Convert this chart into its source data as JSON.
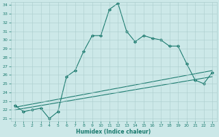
{
  "xlabel": "Humidex (Indice chaleur)",
  "x": [
    0,
    1,
    2,
    3,
    4,
    5,
    6,
    7,
    8,
    9,
    10,
    11,
    12,
    13,
    14,
    15,
    16,
    17,
    18,
    19,
    20,
    21,
    22,
    23
  ],
  "main_y": [
    22.5,
    21.8,
    22.0,
    22.2,
    21.0,
    21.8,
    25.8,
    26.5,
    28.7,
    30.5,
    30.5,
    33.5,
    34.2,
    31.0,
    29.8,
    30.5,
    30.2,
    30.0,
    29.3,
    29.3,
    27.3,
    25.4,
    25.0,
    26.3
  ],
  "trend1_x": [
    0,
    23
  ],
  "trend1_y": [
    22.3,
    26.5
  ],
  "trend2_x": [
    0,
    23
  ],
  "trend2_y": [
    22.0,
    25.8
  ],
  "line_color": "#1a7a6e",
  "bg_color": "#cce8e8",
  "grid_color": "#aacccc",
  "ylim": [
    21,
    34
  ],
  "xlim": [
    -0.5,
    23.5
  ],
  "yticks": [
    21,
    22,
    23,
    24,
    25,
    26,
    27,
    28,
    29,
    30,
    31,
    32,
    33,
    34
  ],
  "xticks": [
    0,
    1,
    2,
    3,
    4,
    5,
    6,
    7,
    8,
    9,
    10,
    11,
    12,
    13,
    14,
    15,
    16,
    17,
    18,
    19,
    20,
    21,
    22,
    23
  ]
}
